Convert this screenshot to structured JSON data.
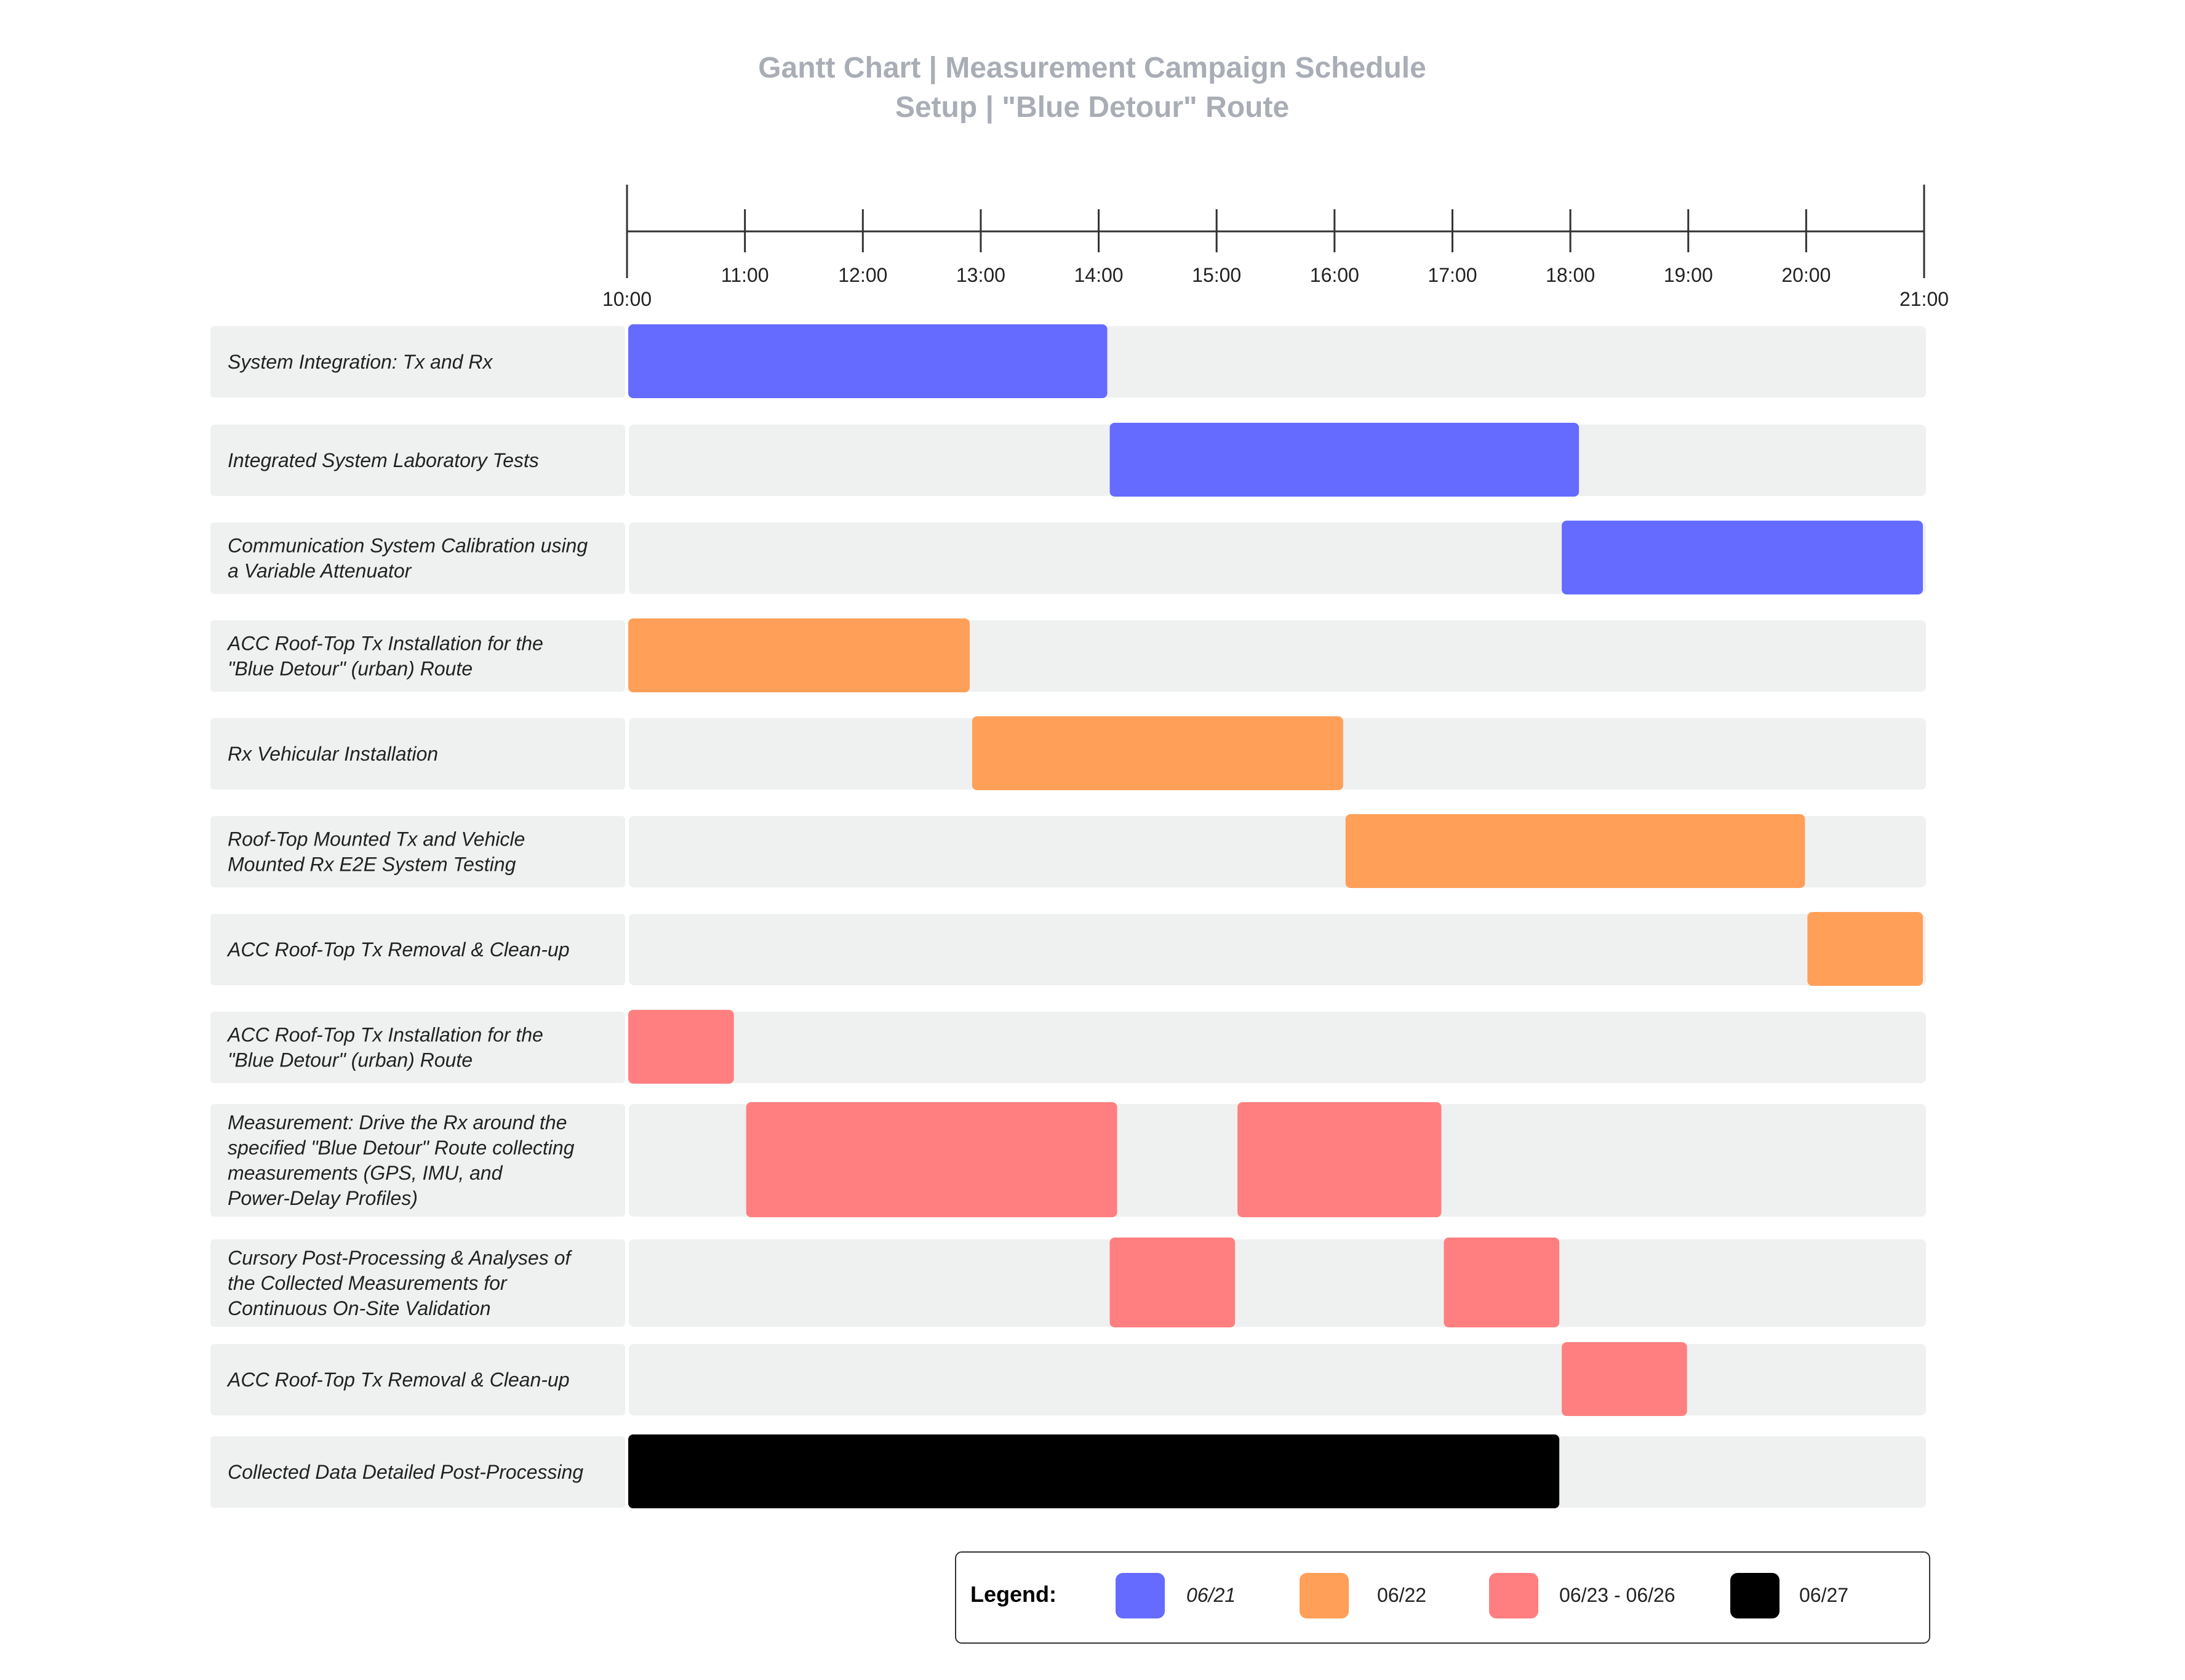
{
  "chart_data": {
    "type": "gantt",
    "title": "Gantt Chart | Measurement Campaign Schedule",
    "subtitle": "Setup | \"Blue Detour\" Route",
    "axis": {
      "start": "10:00",
      "end": "21:00",
      "ticks": [
        "10:00",
        "11:00",
        "12:00",
        "13:00",
        "14:00",
        "15:00",
        "16:00",
        "17:00",
        "18:00",
        "19:00",
        "20:00",
        "21:00"
      ]
    },
    "tasks": [
      {
        "label": [
          "System Integration: Tx and Rx"
        ],
        "group": "06/21",
        "segments": [
          {
            "start": "10:00",
            "end": "14:05"
          }
        ]
      },
      {
        "label": [
          "Integrated System Laboratory Tests"
        ],
        "group": "06/21",
        "segments": [
          {
            "start": "14:05",
            "end": "18:05"
          }
        ]
      },
      {
        "label": [
          "Communication System Calibration using",
          "a Variable Attenuator"
        ],
        "group": "06/21",
        "segments": [
          {
            "start": "17:55",
            "end": "21:00"
          }
        ]
      },
      {
        "label": [
          "ACC Roof-Top Tx Installation for the",
          "\"Blue Detour\" (urban) Route"
        ],
        "group": "06/22",
        "segments": [
          {
            "start": "10:00",
            "end": "12:55"
          }
        ]
      },
      {
        "label": [
          "Rx Vehicular Installation"
        ],
        "group": "06/22",
        "segments": [
          {
            "start": "12:55",
            "end": "16:05"
          }
        ]
      },
      {
        "label": [
          "Roof-Top Mounted Tx and Vehicle",
          "Mounted Rx E2E System Testing"
        ],
        "group": "06/22",
        "segments": [
          {
            "start": "16:05",
            "end": "20:00"
          }
        ]
      },
      {
        "label": [
          "ACC Roof-Top Tx Removal & Clean-up"
        ],
        "group": "06/22",
        "segments": [
          {
            "start": "20:00",
            "end": "21:00"
          }
        ]
      },
      {
        "label": [
          "ACC Roof-Top Tx Installation for the",
          "\"Blue Detour\" (urban) Route"
        ],
        "group": "06/23 - 06/26",
        "segments": [
          {
            "start": "10:00",
            "end": "10:55"
          }
        ]
      },
      {
        "label": [
          "Measurement: Drive the Rx around the",
          "specified \"Blue Detour\" Route collecting",
          "measurements (GPS, IMU, and",
          "Power-Delay Profiles)"
        ],
        "group": "06/23 - 06/26",
        "segments": [
          {
            "start": "11:00",
            "end": "14:10"
          },
          {
            "start": "15:10",
            "end": "16:55"
          }
        ]
      },
      {
        "label": [
          "Cursory Post-Processing & Analyses of",
          "the Collected Measurements for",
          "Continuous On-Site Validation"
        ],
        "group": "06/23 - 06/26",
        "segments": [
          {
            "start": "14:05",
            "end": "15:10"
          },
          {
            "start": "16:55",
            "end": "17:55"
          }
        ]
      },
      {
        "label": [
          "ACC Roof-Top Tx Removal & Clean-up"
        ],
        "group": "06/23 - 06/26",
        "segments": [
          {
            "start": "17:55",
            "end": "19:00"
          }
        ]
      },
      {
        "label": [
          "Collected Data Detailed Post-Processing"
        ],
        "group": "06/27",
        "segments": [
          {
            "start": "10:00",
            "end": "17:55"
          }
        ]
      }
    ],
    "legend": {
      "title": "Legend:",
      "placement": "bottom-right",
      "entries": [
        {
          "label": "06/21",
          "color": "#656BFF",
          "italic": true
        },
        {
          "label": "06/22",
          "color": "#FF9F58",
          "italic": false
        },
        {
          "label": "06/23 - 06/26",
          "color": "#FF7F80",
          "italic": false
        },
        {
          "label": "06/27",
          "color": "#000000",
          "italic": false
        }
      ]
    },
    "colors": {
      "title": "#A9ADB5",
      "row_background": "#EFF0F0",
      "axis": "#333333"
    }
  }
}
